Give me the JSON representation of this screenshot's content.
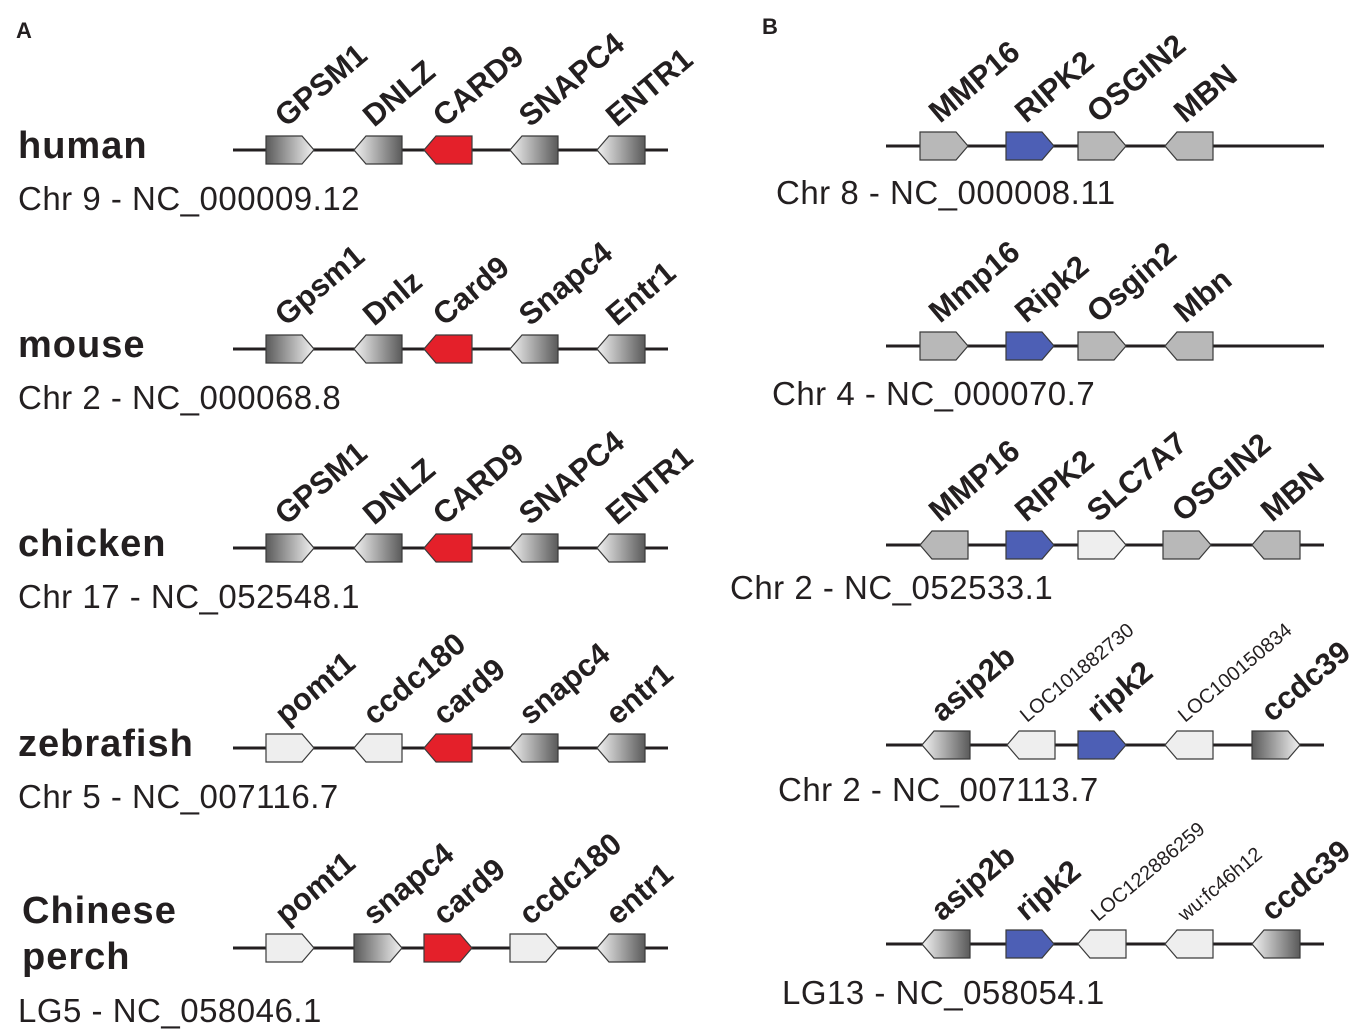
{
  "colors": {
    "card9_highlight": "#e4202a",
    "ripk2_highlight": "#4d5fb5",
    "flat_gray": "#b8b8b8",
    "light_gray": "#eeeeee",
    "gradient_dark": "#5a5a5a",
    "line": "#231f20"
  },
  "panels": [
    {
      "label": "A",
      "tracks": [
        {
          "species": [
            "human"
          ],
          "chromosome": "Chr 9 - NC_000009.12",
          "genes": [
            {
              "name": "GPSM1",
              "style": "grad-lr",
              "dir": "right"
            },
            {
              "name": "DNLZ",
              "style": "grad-rl",
              "dir": "left"
            },
            {
              "name": "CARD9",
              "style": "red",
              "dir": "left"
            },
            {
              "name": "SNAPC4",
              "style": "grad-rl",
              "dir": "left"
            },
            {
              "name": "ENTR1",
              "style": "grad-rl",
              "dir": "left"
            }
          ]
        },
        {
          "species": [
            "mouse"
          ],
          "chromosome": "Chr 2 - NC_000068.8",
          "genes": [
            {
              "name": "Gpsm1",
              "style": "grad-lr",
              "dir": "right"
            },
            {
              "name": "Dnlz",
              "style": "grad-rl",
              "dir": "left"
            },
            {
              "name": "Card9",
              "style": "red",
              "dir": "left"
            },
            {
              "name": "Snapc4",
              "style": "grad-rl",
              "dir": "left"
            },
            {
              "name": "Entr1",
              "style": "grad-rl",
              "dir": "left"
            }
          ]
        },
        {
          "species": [
            "chicken"
          ],
          "chromosome": "Chr 17 - NC_052548.1",
          "genes": [
            {
              "name": "GPSM1",
              "style": "grad-lr",
              "dir": "right"
            },
            {
              "name": "DNLZ",
              "style": "grad-rl",
              "dir": "left"
            },
            {
              "name": "CARD9",
              "style": "red",
              "dir": "left"
            },
            {
              "name": "SNAPC4",
              "style": "grad-rl",
              "dir": "left"
            },
            {
              "name": "ENTR1",
              "style": "grad-rl",
              "dir": "left"
            }
          ]
        },
        {
          "species": [
            "zebrafish"
          ],
          "chromosome": "Chr 5 - NC_007116.7",
          "genes": [
            {
              "name": "pomt1",
              "style": "light",
              "dir": "right"
            },
            {
              "name": "ccdc180",
              "style": "light",
              "dir": "left"
            },
            {
              "name": "card9",
              "style": "red",
              "dir": "left"
            },
            {
              "name": "snapc4",
              "style": "grad-rl",
              "dir": "left"
            },
            {
              "name": "entr1",
              "style": "grad-rl",
              "dir": "left"
            }
          ]
        },
        {
          "species": [
            "Chinese",
            "perch"
          ],
          "chromosome": "LG5 - NC_058046.1",
          "genes": [
            {
              "name": "pomt1",
              "style": "light",
              "dir": "right"
            },
            {
              "name": "snapc4",
              "style": "grad-lr",
              "dir": "right"
            },
            {
              "name": "card9",
              "style": "red",
              "dir": "right"
            },
            {
              "name": "ccdc180",
              "style": "light",
              "dir": "right"
            },
            {
              "name": "entr1",
              "style": "grad-rl",
              "dir": "left"
            }
          ]
        }
      ]
    },
    {
      "label": "B",
      "tracks": [
        {
          "chromosome": "Chr 8 - NC_000008.11",
          "genes": [
            {
              "name": "MMP16",
              "style": "gray",
              "dir": "right"
            },
            {
              "name": "RIPK2",
              "style": "blue",
              "dir": "right"
            },
            {
              "name": "OSGIN2",
              "style": "gray",
              "dir": "right"
            },
            {
              "name": "MBN",
              "style": "gray",
              "dir": "left"
            }
          ]
        },
        {
          "chromosome": "Chr 4 - NC_000070.7",
          "genes": [
            {
              "name": "Mmp16",
              "style": "gray",
              "dir": "right"
            },
            {
              "name": "Ripk2",
              "style": "blue",
              "dir": "right"
            },
            {
              "name": "Osgin2",
              "style": "gray",
              "dir": "right"
            },
            {
              "name": "Mbn",
              "style": "gray",
              "dir": "left"
            }
          ]
        },
        {
          "chromosome": "Chr 2 - NC_052533.1",
          "genes": [
            {
              "name": "MMP16",
              "style": "gray",
              "dir": "left"
            },
            {
              "name": "RIPK2",
              "style": "blue",
              "dir": "right"
            },
            {
              "name": "SLC7A7",
              "style": "light",
              "dir": "right"
            },
            {
              "name": "OSGIN2",
              "style": "gray",
              "dir": "right"
            },
            {
              "name": "MBN",
              "style": "gray",
              "dir": "left"
            }
          ]
        },
        {
          "chromosome": "Chr 2 - NC_007113.7",
          "genes": [
            {
              "name": "asip2b",
              "style": "grad-rl",
              "dir": "left"
            },
            {
              "name": "LOC101882730",
              "style": "light",
              "dir": "left",
              "small": true
            },
            {
              "name": "ripk2",
              "style": "blue",
              "dir": "right"
            },
            {
              "name": "LOC100150834",
              "style": "light",
              "dir": "left",
              "small": true
            },
            {
              "name": "ccdc39",
              "style": "grad-lr",
              "dir": "right"
            }
          ]
        },
        {
          "chromosome": "LG13 - NC_058054.1",
          "genes": [
            {
              "name": "asip2b",
              "style": "grad-rl",
              "dir": "left"
            },
            {
              "name": "ripk2",
              "style": "blue",
              "dir": "right"
            },
            {
              "name": "LOC122886259",
              "style": "light",
              "dir": "left",
              "small": true
            },
            {
              "name": "wu:fc46h12",
              "style": "light",
              "dir": "left",
              "small": true
            },
            {
              "name": "ccdc39",
              "style": "grad-rl",
              "dir": "left"
            }
          ]
        }
      ]
    }
  ]
}
